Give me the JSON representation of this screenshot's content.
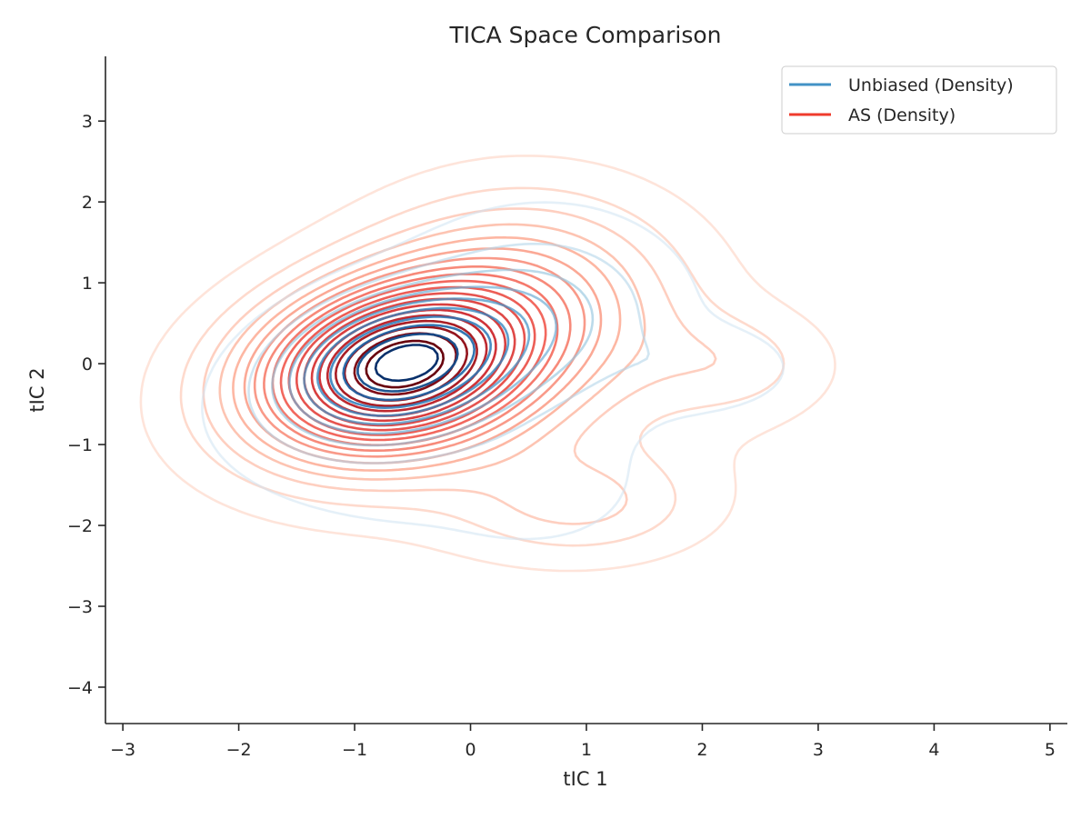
{
  "chart_data": {
    "type": "contour",
    "title": "TICA Space Comparison",
    "xlabel": "tIC 1",
    "ylabel": "tIC 2",
    "xlim": [
      -3.15,
      5.15
    ],
    "ylim": [
      -4.45,
      3.8
    ],
    "xticks": [
      -3,
      -2,
      -1,
      0,
      1,
      2,
      3,
      4,
      5
    ],
    "xtick_labels": [
      "−3",
      "−2",
      "−1",
      "0",
      "1",
      "2",
      "3",
      "4",
      "5"
    ],
    "yticks": [
      -4,
      -3,
      -2,
      -1,
      0,
      1,
      2,
      3
    ],
    "ytick_labels": [
      "−4",
      "−3",
      "−2",
      "−1",
      "0",
      "1",
      "2",
      "3"
    ],
    "grid": false,
    "legend_position": "top-right",
    "series": [
      {
        "name": "Unbiased (Density)",
        "color": "#4292c6",
        "colormap": [
          "#deebf7",
          "#9ecae1",
          "#4292c6",
          "#2171b5",
          "#08306b"
        ],
        "levels": 10,
        "peak": [
          -0.7,
          -0.05
        ],
        "extent_x": [
          -2.3,
          3.1
        ],
        "extent_y": [
          -2.85,
          2.5
        ]
      },
      {
        "name": "AS (Density)",
        "color": "#ef3b2c",
        "colormap": [
          "#fee0d2",
          "#fc9272",
          "#ef3b2c",
          "#cb181d",
          "#67000d"
        ],
        "levels": 20,
        "peak": [
          -0.7,
          -0.05
        ],
        "extent_x": [
          -2.5,
          3.3
        ],
        "extent_y": [
          -3.0,
          2.6
        ]
      }
    ]
  }
}
